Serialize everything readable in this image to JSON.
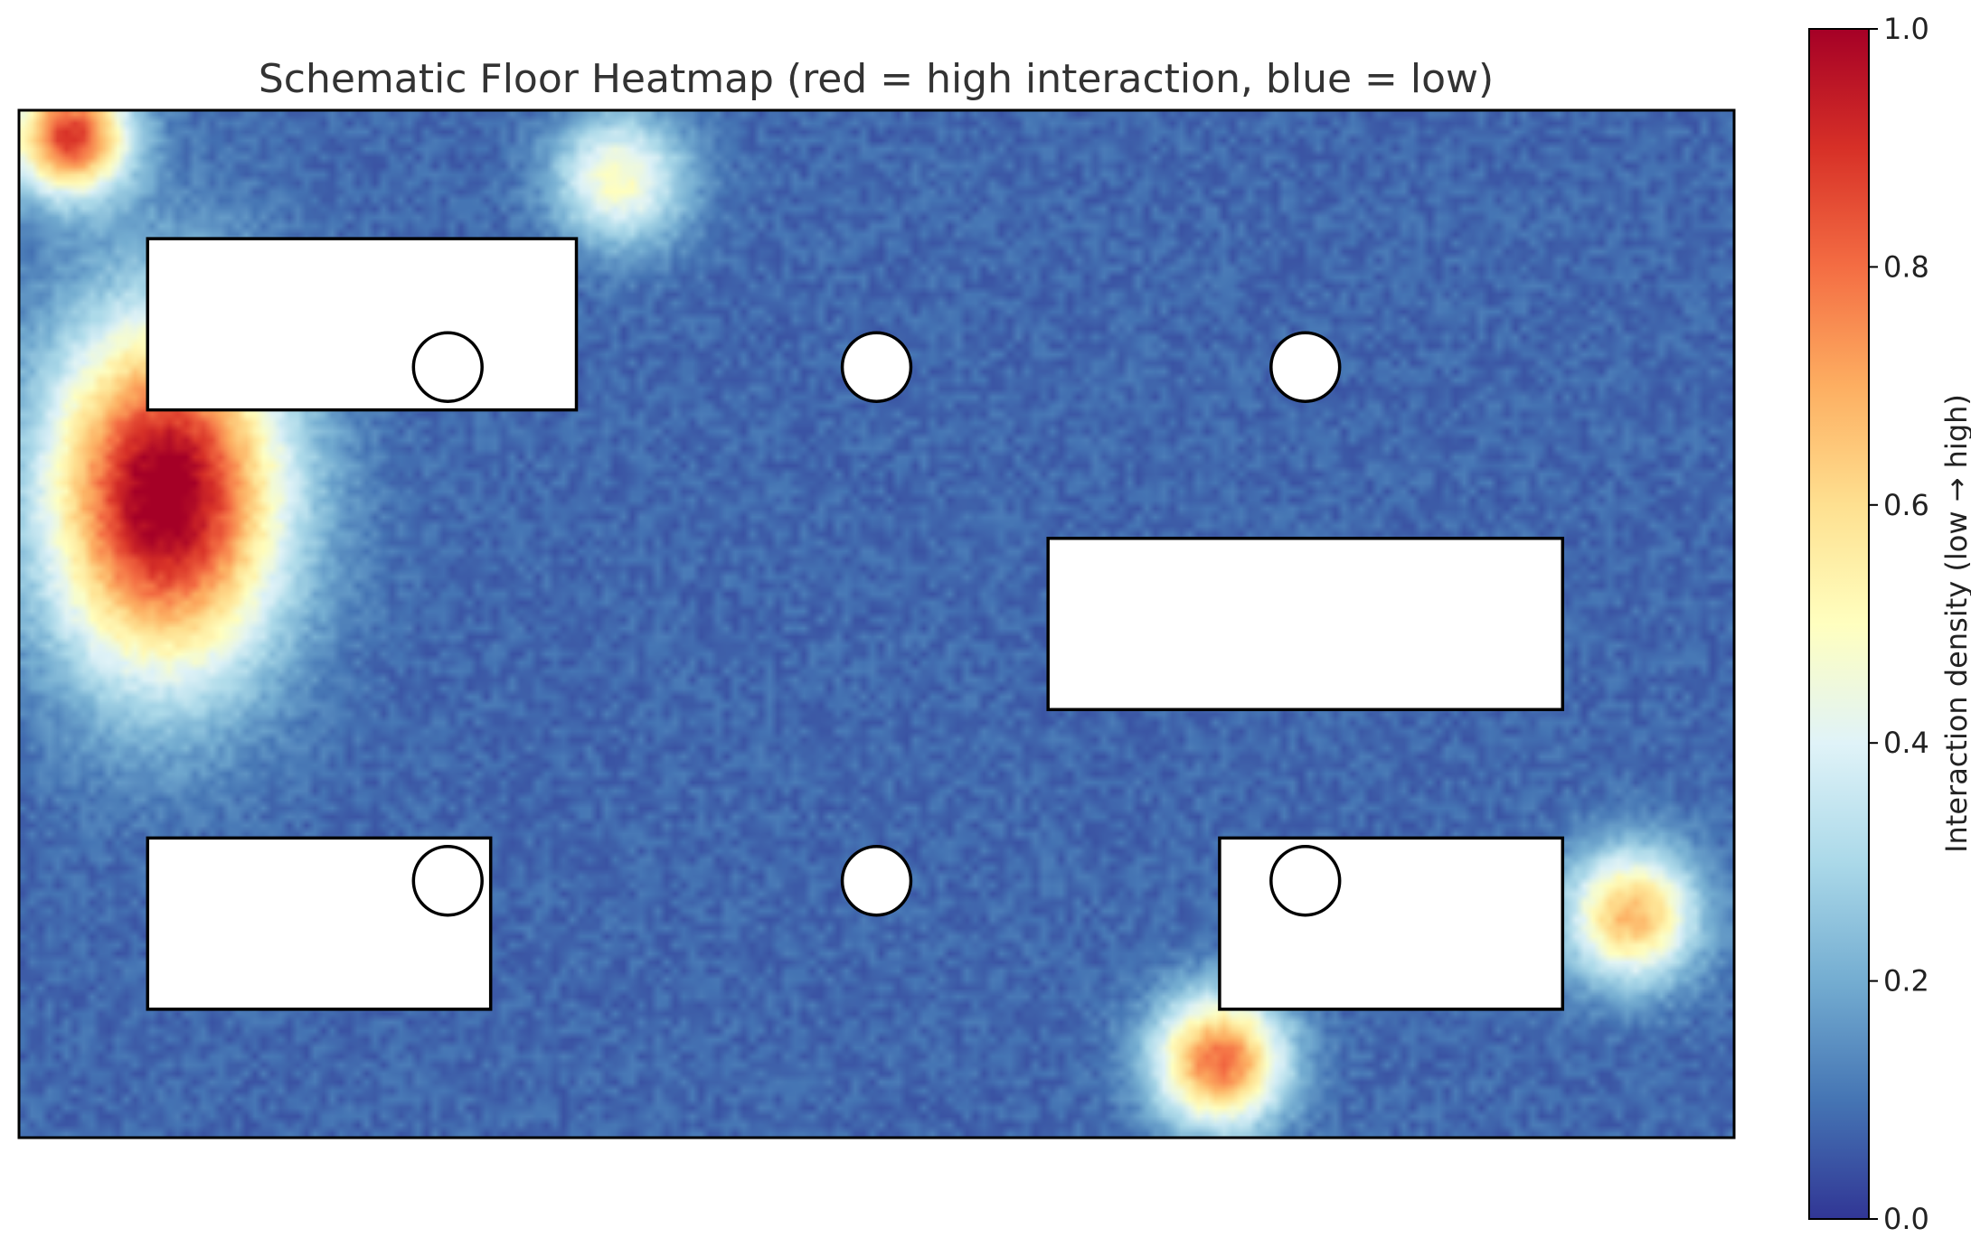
{
  "chart_data": {
    "type": "heatmap",
    "title": "Schematic Floor Heatmap (red = high interaction, blue = low)",
    "xlabel": "",
    "ylabel": "",
    "colorbar": {
      "label": "Interaction density (low → high)",
      "range": [
        0,
        1
      ],
      "ticks": [
        "0.0",
        "0.2",
        "0.4",
        "0.6",
        "0.8",
        "1.0"
      ],
      "tick_values": [
        0.0,
        0.2,
        0.4,
        0.6,
        0.8,
        1.0
      ],
      "colormap": "RdYlBu_r",
      "colors": [
        "#313695",
        "#4575b4",
        "#74add1",
        "#abd9e9",
        "#e0f3f8",
        "#ffffbf",
        "#fee090",
        "#fdae61",
        "#f46d43",
        "#d73027",
        "#a50026"
      ]
    },
    "axes_visible": false,
    "grid": false,
    "floor": {
      "width": 20,
      "height": 12
    },
    "background_density": 0.08,
    "hotspots": [
      {
        "x": 1.7,
        "y": 7.5,
        "sx": 1.6,
        "sy": 2.4,
        "peak": 0.97
      },
      {
        "x": 0.6,
        "y": 11.7,
        "sx": 0.8,
        "sy": 0.8,
        "peak": 0.8
      },
      {
        "x": 7.0,
        "y": 11.2,
        "sx": 0.9,
        "sy": 0.9,
        "peak": 0.42
      },
      {
        "x": 14.0,
        "y": 0.9,
        "sx": 0.9,
        "sy": 0.9,
        "peak": 0.72
      },
      {
        "x": 18.8,
        "y": 2.6,
        "sx": 0.9,
        "sy": 0.9,
        "peak": 0.6
      }
    ],
    "obstacles": {
      "rectangles": [
        {
          "x": 1.5,
          "y": 8.5,
          "w": 5.0,
          "h": 2.0
        },
        {
          "x": 12.0,
          "y": 5.0,
          "w": 6.0,
          "h": 2.0
        },
        {
          "x": 1.5,
          "y": 1.5,
          "w": 4.0,
          "h": 2.0
        },
        {
          "x": 14.0,
          "y": 1.5,
          "w": 4.0,
          "h": 2.0
        }
      ],
      "circles": [
        {
          "x": 5.0,
          "y": 9.0,
          "r": 0.4
        },
        {
          "x": 10.0,
          "y": 9.0,
          "r": 0.4
        },
        {
          "x": 15.0,
          "y": 9.0,
          "r": 0.4
        },
        {
          "x": 5.0,
          "y": 3.0,
          "r": 0.4
        },
        {
          "x": 10.0,
          "y": 3.0,
          "r": 0.4
        },
        {
          "x": 15.0,
          "y": 3.0,
          "r": 0.4
        }
      ]
    }
  }
}
